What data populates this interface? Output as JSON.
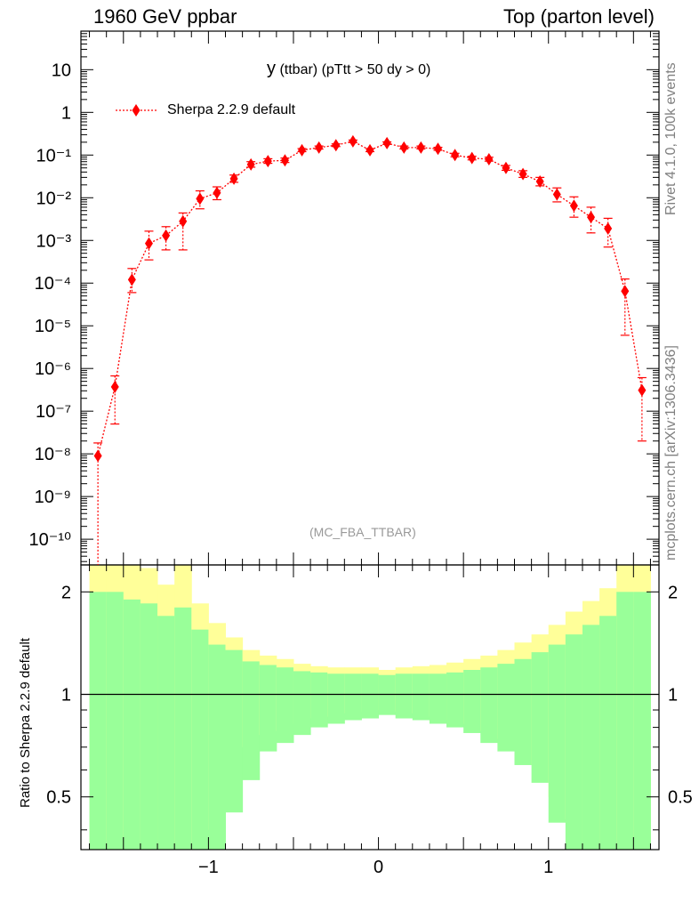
{
  "header": {
    "left_label": "1960 GeV ppbar",
    "right_label": "Top (parton level)"
  },
  "side_labels": {
    "rivet": "Rivet 4.1.0,  100k events",
    "mcplots": "mcplots.cern.ch [arXiv:1306.3436]"
  },
  "colors": {
    "series": "#ff0000",
    "band_inner": "#99ff99",
    "band_outer": "#ffff99",
    "watermark": "#999999",
    "side_text": "#808080"
  },
  "chart_data": [
    {
      "type": "line",
      "title_main": "y",
      "title_rest": "(ttbar) (pTtt > 50 dy > 0)",
      "watermark": "(MC_FBA_TTBAR)",
      "xlabel": "",
      "ylabel": "",
      "yscale": "log",
      "xlim": [
        -1.75,
        1.65
      ],
      "ylim": [
        2.5e-11,
        80
      ],
      "grid": false,
      "legend_position": "top-left",
      "x_tick_labels": [
        "−1",
        "0",
        "1"
      ],
      "y_tick_labels": [
        "10",
        "1",
        "10⁻¹",
        "10⁻²",
        "10⁻³",
        "10⁻⁴",
        "10⁻⁵",
        "10⁻⁶",
        "10⁻⁷",
        "10⁻⁸",
        "10⁻⁹",
        "10⁻¹⁰"
      ],
      "series": [
        {
          "name": "Sherpa 2.2.9 default",
          "x": [
            -1.65,
            -1.55,
            -1.45,
            -1.35,
            -1.25,
            -1.15,
            -1.05,
            -0.95,
            -0.85,
            -0.75,
            -0.65,
            -0.55,
            -0.45,
            -0.35,
            -0.25,
            -0.15,
            -0.05,
            0.05,
            0.15,
            0.25,
            0.35,
            0.45,
            0.55,
            0.65,
            0.75,
            0.85,
            0.95,
            1.05,
            1.15,
            1.25,
            1.35,
            1.45,
            1.55
          ],
          "y": [
            9e-09,
            3.7e-07,
            0.00012,
            0.00085,
            0.0013,
            0.0028,
            0.0095,
            0.013,
            0.028,
            0.06,
            0.072,
            0.075,
            0.13,
            0.15,
            0.17,
            0.21,
            0.13,
            0.19,
            0.15,
            0.15,
            0.14,
            0.1,
            0.085,
            0.08,
            0.05,
            0.036,
            0.024,
            0.012,
            0.0065,
            0.0035,
            0.0019,
            6.5e-05,
            3.1e-07
          ],
          "err_low": [
            9e-09,
            3.2e-07,
            6e-05,
            0.0005,
            0.0007,
            0.0022,
            0.004,
            0.004,
            0.005,
            0.008,
            0.008,
            0.008,
            0.01,
            0.012,
            0.012,
            0.013,
            0.01,
            0.012,
            0.011,
            0.011,
            0.011,
            0.009,
            0.008,
            0.008,
            0.006,
            0.006,
            0.005,
            0.004,
            0.003,
            0.002,
            0.0012,
            5.9e-05,
            2.9e-07
          ],
          "err_high": [
            9e-09,
            3e-07,
            0.0001,
            0.0008,
            0.0008,
            0.0016,
            0.005,
            0.005,
            0.006,
            0.01,
            0.01,
            0.01,
            0.012,
            0.013,
            0.013,
            0.015,
            0.012,
            0.014,
            0.013,
            0.013,
            0.012,
            0.01,
            0.009,
            0.009,
            0.007,
            0.007,
            0.006,
            0.005,
            0.004,
            0.0025,
            0.0014,
            6e-05,
            3e-07
          ]
        }
      ]
    },
    {
      "type": "area",
      "ylabel": "Ratio to Sherpa 2.2.9 default",
      "yscale": "log",
      "xlim": [
        -1.75,
        1.65
      ],
      "ylim": [
        0.35,
        2.4
      ],
      "y_tick_labels": [
        "2",
        "1",
        "0.5"
      ],
      "x_tick_labels": [
        "−1",
        "0",
        "1"
      ],
      "bin_edges": [
        -1.7,
        -1.6,
        -1.5,
        -1.4,
        -1.3,
        -1.2,
        -1.1,
        -1.0,
        -0.9,
        -0.8,
        -0.7,
        -0.6,
        -0.5,
        -0.4,
        -0.3,
        -0.2,
        -0.1,
        0.0,
        0.1,
        0.2,
        0.3,
        0.4,
        0.5,
        0.6,
        0.7,
        0.8,
        0.9,
        1.0,
        1.1,
        1.2,
        1.3,
        1.4,
        1.5,
        1.6
      ],
      "inner_band_low": [
        0.3,
        0.3,
        0.3,
        0.3,
        0.3,
        0.3,
        0.3,
        0.3,
        0.45,
        0.56,
        0.68,
        0.72,
        0.76,
        0.8,
        0.82,
        0.84,
        0.85,
        0.87,
        0.85,
        0.84,
        0.82,
        0.8,
        0.77,
        0.72,
        0.68,
        0.62,
        0.55,
        0.42,
        0.33,
        0.3,
        0.3,
        0.3,
        0.3
      ],
      "inner_band_high": [
        2.0,
        2.0,
        1.9,
        1.85,
        1.7,
        1.8,
        1.55,
        1.4,
        1.35,
        1.25,
        1.22,
        1.2,
        1.17,
        1.16,
        1.15,
        1.15,
        1.15,
        1.14,
        1.15,
        1.15,
        1.15,
        1.16,
        1.18,
        1.2,
        1.23,
        1.27,
        1.33,
        1.4,
        1.5,
        1.6,
        1.7,
        2.0,
        2.0
      ],
      "outer_band_low": [
        0.3,
        0.3,
        0.3,
        0.3,
        0.3,
        0.3,
        0.3,
        0.4,
        0.6,
        0.7,
        0.76,
        0.78,
        0.82,
        0.85,
        0.86,
        0.88,
        0.89,
        0.9,
        0.89,
        0.88,
        0.86,
        0.84,
        0.82,
        0.78,
        0.74,
        0.7,
        0.62,
        0.5,
        0.43,
        0.36,
        0.3,
        0.3,
        0.3
      ],
      "outer_band_high": [
        2.6,
        2.6,
        2.5,
        2.35,
        2.1,
        2.5,
        1.85,
        1.62,
        1.47,
        1.35,
        1.3,
        1.27,
        1.23,
        1.21,
        1.2,
        1.2,
        1.2,
        1.18,
        1.2,
        1.21,
        1.22,
        1.24,
        1.27,
        1.3,
        1.35,
        1.42,
        1.5,
        1.6,
        1.75,
        1.88,
        2.05,
        2.6,
        2.6
      ],
      "reference_line": 1
    }
  ]
}
